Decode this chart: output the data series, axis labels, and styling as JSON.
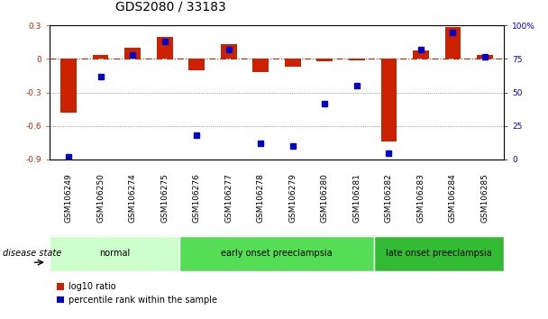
{
  "title": "GDS2080 / 33183",
  "samples": [
    "GSM106249",
    "GSM106250",
    "GSM106274",
    "GSM106275",
    "GSM106276",
    "GSM106277",
    "GSM106278",
    "GSM106279",
    "GSM106280",
    "GSM106281",
    "GSM106282",
    "GSM106283",
    "GSM106284",
    "GSM106285"
  ],
  "log10_ratio": [
    -0.48,
    0.04,
    0.1,
    0.2,
    -0.1,
    0.13,
    -0.12,
    -0.07,
    -0.02,
    -0.01,
    -0.74,
    0.08,
    0.29,
    0.04
  ],
  "percentile_rank": [
    2,
    62,
    78,
    88,
    18,
    82,
    12,
    10,
    42,
    55,
    5,
    82,
    95,
    77
  ],
  "ylim_left": [
    -0.9,
    0.3
  ],
  "ylim_right": [
    0,
    100
  ],
  "yticks_left": [
    -0.9,
    -0.6,
    -0.3,
    0.0,
    0.3
  ],
  "yticks_right": [
    0,
    25,
    50,
    75,
    100
  ],
  "ytick_right_labels": [
    "0",
    "25",
    "50",
    "75",
    "100%"
  ],
  "groups": [
    {
      "label": "normal",
      "start": 0,
      "end": 4,
      "color": "#ccffcc"
    },
    {
      "label": "early onset preeclampsia",
      "start": 4,
      "end": 10,
      "color": "#55dd55"
    },
    {
      "label": "late onset preeclampsia",
      "start": 10,
      "end": 14,
      "color": "#33bb33"
    }
  ],
  "bar_color_red": "#cc2200",
  "bar_color_blue": "#0000cc",
  "line_color_zero": "#cc2200",
  "grid_color": "#555555",
  "bg_color": "#ffffff",
  "tick_bg_color": "#d0d0d0",
  "bar_width": 0.5,
  "marker_size": 40,
  "legend_items": [
    "log10 ratio",
    "percentile rank within the sample"
  ],
  "disease_state_label": "disease state",
  "title_fontsize": 10,
  "tick_fontsize": 6.5,
  "label_fontsize": 8
}
